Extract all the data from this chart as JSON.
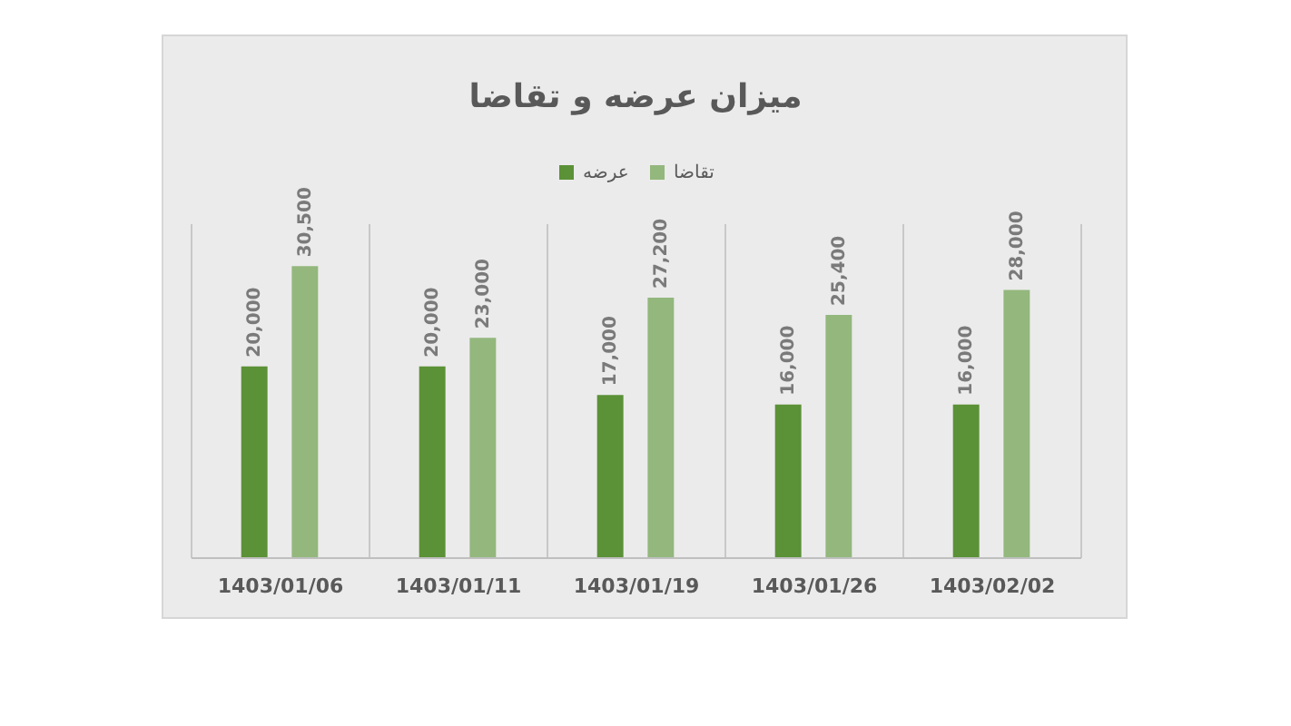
{
  "chart_data": {
    "type": "bar",
    "title": "میزان عرضه و تقاضا",
    "categories": [
      "1403/01/06",
      "1403/01/11",
      "1403/01/19",
      "1403/01/26",
      "1403/02/02"
    ],
    "series": [
      {
        "name": "عرضه",
        "color": "#5b9137",
        "values": [
          20000,
          20000,
          17000,
          16000,
          16000
        ],
        "value_labels": [
          "20,000",
          "20,000",
          "17,000",
          "16,000",
          "16,000"
        ]
      },
      {
        "name": "تقاضا",
        "color": "#93b77d",
        "values": [
          30500,
          23000,
          27200,
          25400,
          28000
        ],
        "value_labels": [
          "30,500",
          "23,000",
          "27,200",
          "25,400",
          "28,000"
        ]
      }
    ],
    "legend": "top",
    "grid": "x"
  }
}
